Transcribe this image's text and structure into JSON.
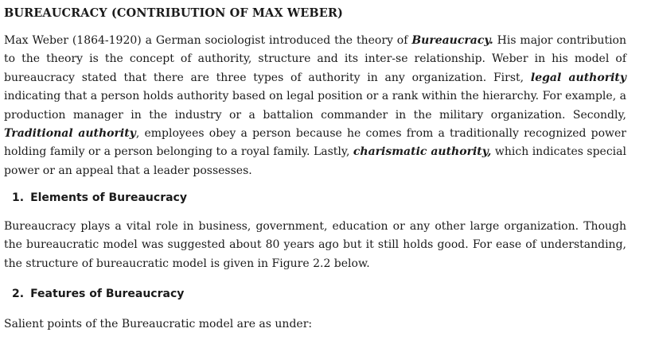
{
  "title": "BUREAUCRACY (CONTRIBUTION OF MAX WEBER)",
  "intro": {
    "t1": "Max Weber (1864-1920) a German sociologist introduced the theory of ",
    "e1": "Bureaucracy.",
    "t2": " His major contribution to the theory is the concept of authority, structure and its inter-se relationship. Weber in his model of bureaucracy stated that there are three types of authority in any organization. First, ",
    "e2": "legal authority",
    "t3": " indicating that a person holds authority based on legal position or a rank within the hierarchy. For example, a production manager in the industry or a battalion commander in the military organization. Secondly, ",
    "e3": "Traditional authority",
    "t4": ", employees obey a person because he comes from a traditionally recognized power holding family or a person belonging to a royal family. Lastly, ",
    "e4": "charismatic authority,",
    "t5": " which indicates special power or an appeal that a leader possesses."
  },
  "section1": {
    "number": "1.",
    "heading": "Elements of Bureaucracy",
    "text": "Bureaucracy plays a vital role in business, government, education or any other large organization. Though the bureaucratic model was suggested about 80 years ago but it still holds good. For ease of understanding, the structure of bureaucratic model is given in Figure 2.2 below."
  },
  "section2": {
    "number": "2.",
    "heading": "Features of Bureaucracy",
    "text": "Salient points of the Bureaucratic model are as under:"
  }
}
